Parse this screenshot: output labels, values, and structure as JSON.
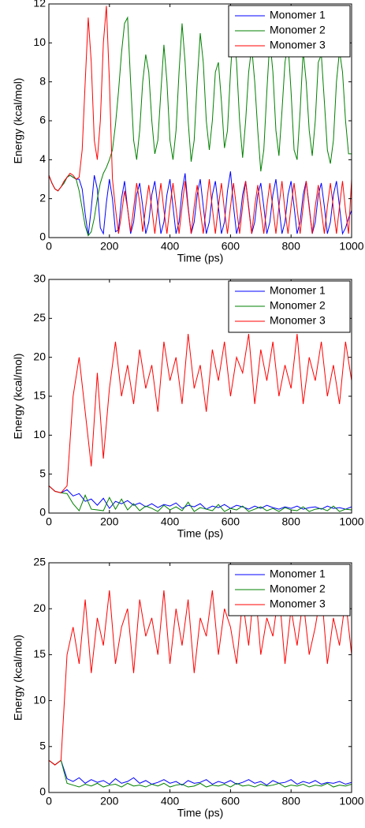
{
  "chart_data": [
    {
      "type": "line",
      "xlabel": "Time (ps)",
      "ylabel": "Energy (kcal/mol)",
      "legend": "upper right",
      "xlim": [
        0,
        1000
      ],
      "xticks": [
        0,
        200,
        400,
        600,
        800,
        1000
      ],
      "ylim": [
        0,
        12
      ],
      "yticks": [
        0,
        2,
        4,
        6,
        8,
        10,
        12
      ],
      "x": [
        0,
        10,
        20,
        30,
        40,
        50,
        60,
        70,
        80,
        90,
        100,
        110,
        120,
        130,
        140,
        150,
        160,
        170,
        180,
        190,
        200,
        210,
        220,
        230,
        240,
        250,
        260,
        270,
        280,
        290,
        300,
        310,
        320,
        330,
        340,
        350,
        360,
        370,
        380,
        390,
        400,
        410,
        420,
        430,
        440,
        450,
        460,
        470,
        480,
        490,
        500,
        510,
        520,
        530,
        540,
        550,
        560,
        570,
        580,
        590,
        600,
        610,
        620,
        630,
        640,
        650,
        660,
        670,
        680,
        690,
        700,
        710,
        720,
        730,
        740,
        750,
        760,
        770,
        780,
        790,
        800,
        810,
        820,
        830,
        840,
        850,
        860,
        870,
        880,
        890,
        900,
        910,
        920,
        930,
        940,
        950,
        960,
        970,
        980,
        990,
        1000
      ],
      "series": [
        {
          "name": "Monomer 1",
          "color": "#0000ff",
          "values": [
            3.2,
            2.8,
            2.5,
            2.4,
            2.6,
            2.8,
            3.1,
            3.2,
            3.1,
            3.0,
            3.0,
            2.5,
            1.2,
            0.1,
            1.5,
            3.2,
            2.5,
            0.5,
            0.2,
            1.8,
            3.0,
            2.0,
            0.3,
            0.4,
            2.0,
            2.9,
            1.5,
            0.2,
            0.8,
            2.2,
            2.8,
            1.6,
            0.2,
            0.8,
            2.2,
            2.9,
            1.6,
            0.2,
            0.8,
            2.2,
            3.0,
            1.6,
            0.2,
            0.8,
            2.4,
            3.3,
            1.6,
            0.2,
            0.8,
            2.2,
            3.0,
            1.6,
            0.2,
            0.8,
            2.2,
            2.9,
            1.6,
            0.2,
            0.8,
            2.4,
            3.4,
            1.6,
            0.2,
            0.8,
            2.2,
            2.9,
            1.6,
            0.2,
            0.8,
            2.2,
            2.8,
            1.6,
            0.2,
            0.8,
            2.2,
            3.0,
            1.6,
            0.2,
            0.8,
            2.2,
            2.9,
            1.6,
            0.2,
            0.8,
            2.2,
            2.9,
            1.6,
            0.2,
            0.8,
            2.2,
            2.8,
            1.6,
            0.2,
            0.8,
            2.2,
            2.9,
            1.6,
            0.2,
            0.5,
            1.0,
            1.4
          ]
        },
        {
          "name": "Monomer 2",
          "color": "#008000",
          "values": [
            3.2,
            2.8,
            2.5,
            2.4,
            2.6,
            2.8,
            3.1,
            3.2,
            3.1,
            3.0,
            2.4,
            1.5,
            0.6,
            0.1,
            0.3,
            1.0,
            2.0,
            2.8,
            3.3,
            3.6,
            4.0,
            4.5,
            5.8,
            7.5,
            9.5,
            11.0,
            11.3,
            8.0,
            5.0,
            4.0,
            5.5,
            8.0,
            9.4,
            8.5,
            6.0,
            4.3,
            5.0,
            7.5,
            9.9,
            8.0,
            5.0,
            4.0,
            5.5,
            8.5,
            11.0,
            9.0,
            6.0,
            3.9,
            5.0,
            8.0,
            10.5,
            9.0,
            6.0,
            4.5,
            6.0,
            8.5,
            9.0,
            7.0,
            4.6,
            5.5,
            8.5,
            10.9,
            9.0,
            6.0,
            4.1,
            6.0,
            8.5,
            9.8,
            8.0,
            5.5,
            3.4,
            4.5,
            7.5,
            10.2,
            8.5,
            5.5,
            4.2,
            6.5,
            9.0,
            10.0,
            7.5,
            4.5,
            4.0,
            6.5,
            9.6,
            8.0,
            5.5,
            4.2,
            6.0,
            9.0,
            9.4,
            7.0,
            4.5,
            3.8,
            5.0,
            8.0,
            9.6,
            8.5,
            6.0,
            4.3,
            4.3
          ]
        },
        {
          "name": "Monomer 3",
          "color": "#ff0000",
          "values": [
            3.2,
            2.8,
            2.5,
            2.4,
            2.6,
            2.9,
            3.1,
            3.3,
            3.2,
            3.0,
            3.1,
            4.5,
            8.0,
            11.3,
            9.0,
            5.0,
            4.0,
            6.0,
            10.0,
            11.9,
            8.0,
            3.0,
            1.5,
            0.2,
            1.2,
            2.4,
            1.5,
            0.3,
            1.5,
            2.8,
            1.8,
            0.3,
            1.6,
            2.7,
            1.5,
            0.2,
            1.6,
            2.8,
            1.4,
            0.2,
            1.6,
            2.8,
            1.5,
            0.2,
            1.6,
            2.9,
            1.5,
            0.2,
            1.6,
            2.7,
            1.4,
            0.2,
            1.6,
            3.0,
            1.5,
            0.2,
            1.6,
            2.8,
            1.4,
            0.2,
            1.6,
            2.8,
            1.5,
            0.2,
            1.6,
            2.9,
            1.5,
            0.2,
            1.6,
            2.7,
            1.4,
            0.2,
            1.6,
            2.8,
            1.5,
            0.2,
            1.6,
            2.9,
            1.4,
            0.2,
            1.6,
            2.8,
            1.5,
            0.2,
            1.6,
            2.9,
            1.5,
            0.2,
            1.6,
            2.7,
            1.4,
            0.2,
            1.6,
            2.8,
            1.5,
            0.2,
            1.6,
            2.9,
            1.4,
            0.2,
            3.0
          ]
        }
      ]
    },
    {
      "type": "line",
      "xlabel": "Time (ps)",
      "ylabel": "Energy (kcal/mol)",
      "legend": "upper right",
      "xlim": [
        0,
        1000
      ],
      "xticks": [
        0,
        200,
        400,
        600,
        800,
        1000
      ],
      "ylim": [
        0,
        30
      ],
      "yticks": [
        0,
        5,
        10,
        15,
        20,
        25,
        30
      ],
      "x": [
        0,
        20,
        40,
        60,
        80,
        100,
        120,
        140,
        160,
        180,
        200,
        220,
        240,
        260,
        280,
        300,
        320,
        340,
        360,
        380,
        400,
        420,
        440,
        460,
        480,
        500,
        520,
        540,
        560,
        580,
        600,
        620,
        640,
        660,
        680,
        700,
        720,
        740,
        760,
        780,
        800,
        820,
        840,
        860,
        880,
        900,
        920,
        940,
        960,
        980,
        1000
      ],
      "series": [
        {
          "name": "Monomer 1",
          "color": "#0000ff",
          "values": [
            3.5,
            2.8,
            2.6,
            3.0,
            2.2,
            2.5,
            1.5,
            1.8,
            1.0,
            1.9,
            0.6,
            1.5,
            1.2,
            1.6,
            1.0,
            1.3,
            0.8,
            1.2,
            0.7,
            1.1,
            0.9,
            1.3,
            0.6,
            1.0,
            0.8,
            1.2,
            0.5,
            0.9,
            0.7,
            1.1,
            0.6,
            1.0,
            0.8,
            0.5,
            0.9,
            0.6,
            1.0,
            0.7,
            0.5,
            0.8,
            0.6,
            0.9,
            0.5,
            0.7,
            0.8,
            0.5,
            0.9,
            0.6,
            0.7,
            0.5,
            0.8
          ]
        },
        {
          "name": "Monomer 2",
          "color": "#008000",
          "values": [
            3.5,
            2.8,
            2.6,
            2.5,
            1.2,
            0.3,
            2.3,
            0.5,
            0.4,
            0.3,
            2.0,
            0.5,
            1.8,
            0.4,
            1.2,
            0.3,
            0.9,
            0.6,
            0.2,
            1.0,
            0.4,
            0.8,
            0.3,
            1.4,
            0.2,
            0.7,
            0.5,
            0.3,
            1.1,
            0.2,
            0.6,
            0.4,
            0.9,
            0.2,
            0.5,
            0.8,
            0.3,
            0.6,
            0.2,
            0.7,
            0.4,
            0.3,
            0.8,
            0.2,
            0.5,
            0.6,
            0.3,
            0.9,
            0.2,
            0.5,
            0.4
          ]
        },
        {
          "name": "Monomer 3",
          "color": "#ff0000",
          "values": [
            3.5,
            2.8,
            2.6,
            3.5,
            15,
            20,
            13,
            6,
            18,
            7,
            16,
            22,
            15,
            19,
            14,
            21,
            16,
            19,
            13,
            22,
            17,
            20,
            14,
            23,
            16,
            19,
            13,
            21,
            17,
            22,
            15,
            20,
            18,
            23,
            14,
            21,
            17,
            22,
            15,
            19,
            16,
            23,
            14,
            20,
            17,
            22,
            15,
            19,
            14,
            22,
            17
          ]
        }
      ]
    },
    {
      "type": "line",
      "xlabel": "Time (ps)",
      "ylabel": "Energy (kcal/mol)",
      "legend": "upper right",
      "xlim": [
        0,
        1000
      ],
      "xticks": [
        0,
        200,
        400,
        600,
        800,
        1000
      ],
      "ylim": [
        0,
        25
      ],
      "yticks": [
        0,
        5,
        10,
        15,
        20,
        25
      ],
      "x": [
        0,
        20,
        40,
        60,
        80,
        100,
        120,
        140,
        160,
        180,
        200,
        220,
        240,
        260,
        280,
        300,
        320,
        340,
        360,
        380,
        400,
        420,
        440,
        460,
        480,
        500,
        520,
        540,
        560,
        580,
        600,
        620,
        640,
        660,
        680,
        700,
        720,
        740,
        760,
        780,
        800,
        820,
        840,
        860,
        880,
        900,
        920,
        940,
        960,
        980,
        1000
      ],
      "series": [
        {
          "name": "Monomer 1",
          "color": "#0000ff",
          "values": [
            3.5,
            3.0,
            3.5,
            1.5,
            1.2,
            1.6,
            1.0,
            1.4,
            1.1,
            1.3,
            0.9,
            1.5,
            1.0,
            1.2,
            1.6,
            1.0,
            1.3,
            0.9,
            1.1,
            1.4,
            1.0,
            1.2,
            0.8,
            1.3,
            1.0,
            1.1,
            1.4,
            0.9,
            1.2,
            1.0,
            1.3,
            0.9,
            1.1,
            1.4,
            1.0,
            1.2,
            0.8,
            1.3,
            1.0,
            1.1,
            1.4,
            0.9,
            1.2,
            1.0,
            1.3,
            0.9,
            1.1,
            1.0,
            1.2,
            0.9,
            1.1
          ]
        },
        {
          "name": "Monomer 2",
          "color": "#008000",
          "values": [
            3.5,
            3.0,
            3.5,
            1.0,
            0.8,
            0.6,
            0.9,
            0.7,
            1.0,
            0.6,
            0.8,
            0.9,
            0.6,
            1.0,
            0.7,
            0.8,
            0.6,
            0.9,
            0.7,
            1.0,
            0.6,
            0.8,
            0.9,
            0.6,
            0.7,
            1.0,
            0.6,
            0.8,
            0.7,
            0.9,
            0.6,
            1.0,
            0.7,
            0.8,
            0.6,
            0.9,
            0.7,
            0.8,
            1.0,
            0.6,
            0.8,
            0.7,
            0.9,
            0.6,
            0.8,
            0.7,
            1.0,
            0.6,
            0.8,
            0.7,
            0.9
          ]
        },
        {
          "name": "Monomer 3",
          "color": "#ff0000",
          "values": [
            3.5,
            3.0,
            3.5,
            15,
            18,
            14,
            21,
            13,
            19,
            16,
            22,
            14,
            18,
            20,
            13,
            21,
            17,
            19,
            15,
            22,
            14,
            20,
            16,
            21,
            13,
            19,
            17,
            22,
            15,
            20,
            18,
            14,
            21,
            16,
            23,
            15,
            19,
            17,
            22,
            14,
            20,
            16,
            21,
            15,
            18,
            22,
            14,
            19,
            16,
            21,
            15
          ]
        }
      ]
    }
  ]
}
